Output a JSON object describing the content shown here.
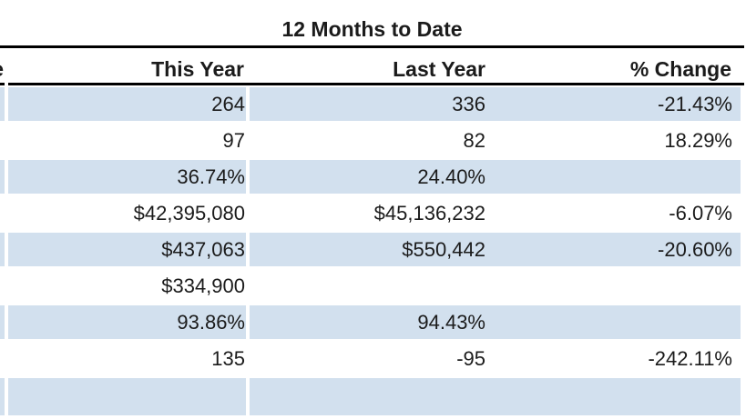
{
  "title": "12 Months to Date",
  "left_clipped_column": {
    "header_fragment": "e"
  },
  "columns": [
    "This Year",
    "Last Year",
    "% Change"
  ],
  "rows": [
    {
      "this_year": "264",
      "last_year": "336",
      "pct_change": "-21.43%"
    },
    {
      "this_year": "97",
      "last_year": "82",
      "pct_change": "18.29%"
    },
    {
      "this_year": "36.74%",
      "last_year": "24.40%",
      "pct_change": ""
    },
    {
      "this_year": "$42,395,080",
      "last_year": "$45,136,232",
      "pct_change": "-6.07%"
    },
    {
      "this_year": "$437,063",
      "last_year": "$550,442",
      "pct_change": "-20.60%"
    },
    {
      "this_year": "$334,900",
      "last_year": "",
      "pct_change": ""
    },
    {
      "this_year": "93.86%",
      "last_year": "94.43%",
      "pct_change": ""
    },
    {
      "this_year": "135",
      "last_year": "-95",
      "pct_change": "-242.11%"
    },
    {
      "this_year": "",
      "last_year": "",
      "pct_change": ""
    }
  ],
  "colors": {
    "row_stripe": "#d2e0ee",
    "row_alt": "#ffffff",
    "rule": "#000000",
    "text": "#1b1b1b",
    "background": "#ffffff"
  }
}
